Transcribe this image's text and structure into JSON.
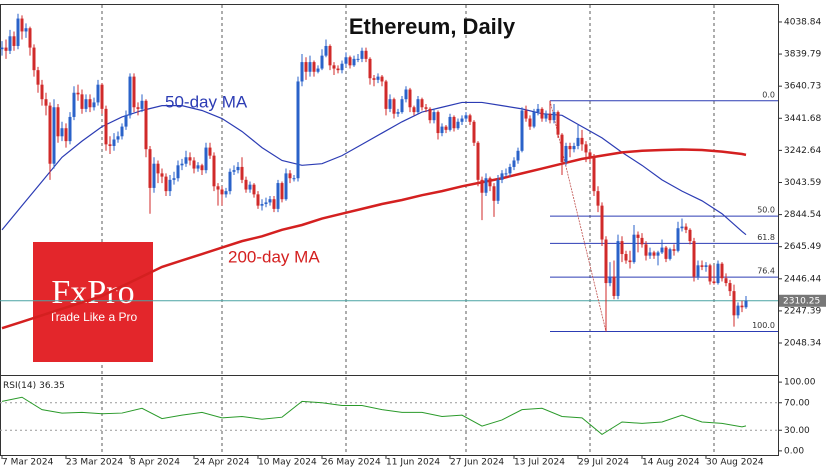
{
  "chart_data": {
    "type": "candlestick",
    "title": "Ethereum, Daily",
    "up_color": "#2a62c9",
    "down_color": "#d02a2a",
    "grid": true,
    "ylim": [
      1881,
      4144
    ],
    "yticks": [
      4038.84,
      3839.79,
      3640.73,
      3441.68,
      3242.64,
      3043.59,
      2844.54,
      2645.49,
      2446.44,
      2247.39,
      2048.34
    ],
    "xticks": [
      "7 Mar 2024",
      "23 Mar 2024",
      "8 Apr 2024",
      "24 Apr 2024",
      "10 May 2024",
      "26 May 2024",
      "11 Jun 2024",
      "27 Jun 2024",
      "13 Jul 2024",
      "29 Jul 2024",
      "14 Aug 2024",
      "30 Aug 2024"
    ],
    "candles": [
      [
        3870,
        3920,
        3830,
        3880
      ],
      [
        3880,
        3930,
        3810,
        3860
      ],
      [
        3860,
        3990,
        3840,
        3950
      ],
      [
        3950,
        3980,
        3860,
        3890
      ],
      [
        3890,
        4090,
        3870,
        4060
      ],
      [
        4060,
        4080,
        3930,
        3980
      ],
      [
        3980,
        4030,
        3940,
        4000
      ],
      [
        4000,
        4010,
        3830,
        3880
      ],
      [
        3880,
        3900,
        3700,
        3740
      ],
      [
        3740,
        3760,
        3600,
        3650
      ],
      [
        3650,
        3680,
        3520,
        3560
      ],
      [
        3560,
        3600,
        3460,
        3520
      ],
      [
        3520,
        3540,
        3060,
        3160
      ],
      [
        3160,
        3560,
        3130,
        3510
      ],
      [
        3510,
        3530,
        3290,
        3330
      ],
      [
        3330,
        3420,
        3300,
        3380
      ],
      [
        3380,
        3410,
        3260,
        3300
      ],
      [
        3300,
        3480,
        3280,
        3450
      ],
      [
        3450,
        3640,
        3430,
        3600
      ],
      [
        3600,
        3650,
        3550,
        3590
      ],
      [
        3590,
        3620,
        3470,
        3500
      ],
      [
        3500,
        3590,
        3480,
        3560
      ],
      [
        3560,
        3590,
        3480,
        3510
      ],
      [
        3510,
        3570,
        3490,
        3540
      ],
      [
        3540,
        3680,
        3520,
        3650
      ],
      [
        3650,
        3660,
        3470,
        3500
      ],
      [
        3500,
        3520,
        3240,
        3280
      ],
      [
        3280,
        3330,
        3220,
        3270
      ],
      [
        3270,
        3350,
        3240,
        3310
      ],
      [
        3310,
        3360,
        3290,
        3330
      ],
      [
        3330,
        3410,
        3310,
        3390
      ],
      [
        3390,
        3490,
        3370,
        3460
      ],
      [
        3460,
        3720,
        3440,
        3700
      ],
      [
        3700,
        3720,
        3480,
        3510
      ],
      [
        3510,
        3540,
        3460,
        3500
      ],
      [
        3500,
        3590,
        3480,
        3550
      ],
      [
        3550,
        3560,
        3200,
        3250
      ],
      [
        3250,
        3270,
        2850,
        3010
      ],
      [
        3010,
        3200,
        2980,
        3160
      ],
      [
        3160,
        3180,
        3040,
        3100
      ],
      [
        3100,
        3130,
        3040,
        3080
      ],
      [
        3080,
        3100,
        2960,
        2990
      ],
      [
        2990,
        3090,
        2960,
        3060
      ],
      [
        3060,
        3110,
        3030,
        3070
      ],
      [
        3070,
        3180,
        3050,
        3150
      ],
      [
        3150,
        3190,
        3120,
        3160
      ],
      [
        3160,
        3240,
        3140,
        3200
      ],
      [
        3200,
        3230,
        3150,
        3180
      ],
      [
        3180,
        3200,
        3100,
        3130
      ],
      [
        3130,
        3170,
        3110,
        3150
      ],
      [
        3150,
        3160,
        3090,
        3120
      ],
      [
        3120,
        3290,
        3100,
        3260
      ],
      [
        3260,
        3290,
        3190,
        3210
      ],
      [
        3210,
        3230,
        2990,
        3020
      ],
      [
        3020,
        3040,
        2900,
        3000
      ],
      [
        3000,
        3020,
        2900,
        2970
      ],
      [
        2970,
        3010,
        2950,
        2990
      ],
      [
        2990,
        3130,
        2970,
        3110
      ],
      [
        3110,
        3150,
        3090,
        3120
      ],
      [
        3120,
        3170,
        3100,
        3140
      ],
      [
        3140,
        3200,
        3040,
        3060
      ],
      [
        3060,
        3080,
        2980,
        3000
      ],
      [
        3000,
        3050,
        2980,
        3030
      ],
      [
        3030,
        3040,
        2950,
        2970
      ],
      [
        2970,
        2990,
        2880,
        2900
      ],
      [
        2900,
        2940,
        2870,
        2910
      ],
      [
        2910,
        2950,
        2890,
        2920
      ],
      [
        2920,
        2960,
        2900,
        2940
      ],
      [
        2940,
        2960,
        2860,
        2880
      ],
      [
        2880,
        3060,
        2860,
        3040
      ],
      [
        3040,
        3050,
        2920,
        2940
      ],
      [
        2940,
        3130,
        2930,
        3100
      ],
      [
        3100,
        3120,
        3040,
        3070
      ],
      [
        3070,
        3090,
        3050,
        3070
      ],
      [
        3070,
        3700,
        3050,
        3670
      ],
      [
        3670,
        3840,
        3640,
        3790
      ],
      [
        3790,
        3820,
        3680,
        3730
      ],
      [
        3730,
        3830,
        3700,
        3790
      ],
      [
        3790,
        3800,
        3700,
        3730
      ],
      [
        3730,
        3770,
        3720,
        3750
      ],
      [
        3750,
        3870,
        3740,
        3830
      ],
      [
        3830,
        3930,
        3820,
        3890
      ],
      [
        3890,
        3900,
        3740,
        3770
      ],
      [
        3770,
        3790,
        3710,
        3750
      ],
      [
        3750,
        3770,
        3720,
        3740
      ],
      [
        3740,
        3800,
        3720,
        3780
      ],
      [
        3780,
        3850,
        3760,
        3820
      ],
      [
        3820,
        3830,
        3750,
        3770
      ],
      [
        3770,
        3830,
        3760,
        3810
      ],
      [
        3810,
        3840,
        3790,
        3810
      ],
      [
        3810,
        3880,
        3790,
        3860
      ],
      [
        3860,
        3880,
        3790,
        3810
      ],
      [
        3810,
        3820,
        3650,
        3690
      ],
      [
        3690,
        3710,
        3640,
        3680
      ],
      [
        3680,
        3720,
        3660,
        3700
      ],
      [
        3700,
        3710,
        3640,
        3670
      ],
      [
        3670,
        3680,
        3460,
        3500
      ],
      [
        3500,
        3590,
        3480,
        3560
      ],
      [
        3560,
        3570,
        3440,
        3470
      ],
      [
        3470,
        3500,
        3450,
        3480
      ],
      [
        3480,
        3580,
        3470,
        3560
      ],
      [
        3560,
        3640,
        3540,
        3620
      ],
      [
        3620,
        3630,
        3480,
        3510
      ],
      [
        3510,
        3520,
        3460,
        3480
      ],
      [
        3480,
        3580,
        3470,
        3560
      ],
      [
        3560,
        3570,
        3490,
        3510
      ],
      [
        3510,
        3530,
        3480,
        3500
      ],
      [
        3500,
        3510,
        3410,
        3430
      ],
      [
        3430,
        3500,
        3410,
        3480
      ],
      [
        3480,
        3490,
        3310,
        3350
      ],
      [
        3350,
        3410,
        3330,
        3390
      ],
      [
        3390,
        3400,
        3350,
        3370
      ],
      [
        3370,
        3470,
        3360,
        3450
      ],
      [
        3450,
        3460,
        3360,
        3380
      ],
      [
        3380,
        3440,
        3370,
        3420
      ],
      [
        3420,
        3460,
        3400,
        3440
      ],
      [
        3440,
        3480,
        3420,
        3460
      ],
      [
        3460,
        3470,
        3400,
        3420
      ],
      [
        3420,
        3430,
        3270,
        3290
      ],
      [
        3290,
        3300,
        3020,
        3060
      ],
      [
        3060,
        3080,
        2810,
        2980
      ],
      [
        2980,
        3100,
        2960,
        3070
      ],
      [
        3070,
        3080,
        2990,
        3020
      ],
      [
        3020,
        3040,
        2830,
        2930
      ],
      [
        2930,
        3090,
        2910,
        3060
      ],
      [
        3060,
        3120,
        3040,
        3100
      ],
      [
        3100,
        3130,
        3080,
        3100
      ],
      [
        3100,
        3160,
        3080,
        3140
      ],
      [
        3140,
        3200,
        3120,
        3180
      ],
      [
        3180,
        3260,
        3160,
        3240
      ],
      [
        3240,
        3510,
        3230,
        3490
      ],
      [
        3490,
        3520,
        3420,
        3440
      ],
      [
        3440,
        3460,
        3370,
        3390
      ],
      [
        3390,
        3500,
        3380,
        3480
      ],
      [
        3480,
        3530,
        3460,
        3500
      ],
      [
        3500,
        3510,
        3420,
        3440
      ],
      [
        3440,
        3490,
        3420,
        3470
      ],
      [
        3470,
        3550,
        3410,
        3430
      ],
      [
        3430,
        3530,
        3410,
        3480
      ],
      [
        3480,
        3490,
        3320,
        3340
      ],
      [
        3340,
        3350,
        3090,
        3170
      ],
      [
        3170,
        3290,
        3150,
        3270
      ],
      [
        3270,
        3290,
        3200,
        3250
      ],
      [
        3250,
        3290,
        3230,
        3270
      ],
      [
        3270,
        3400,
        3250,
        3320
      ],
      [
        3320,
        3370,
        3240,
        3280
      ],
      [
        3280,
        3300,
        3170,
        3230
      ],
      [
        3230,
        3240,
        3170,
        3200
      ],
      [
        3200,
        3220,
        2960,
        2990
      ],
      [
        2990,
        3020,
        2860,
        2900
      ],
      [
        2900,
        2920,
        2650,
        2690
      ],
      [
        2690,
        2710,
        2120,
        2420
      ],
      [
        2420,
        2550,
        2400,
        2460
      ],
      [
        2460,
        2560,
        2320,
        2340
      ],
      [
        2340,
        2720,
        2320,
        2680
      ],
      [
        2680,
        2710,
        2550,
        2600
      ],
      [
        2600,
        2620,
        2540,
        2560
      ],
      [
        2560,
        2620,
        2510,
        2550
      ],
      [
        2550,
        2780,
        2540,
        2720
      ],
      [
        2720,
        2740,
        2610,
        2700
      ],
      [
        2700,
        2730,
        2640,
        2660
      ],
      [
        2660,
        2680,
        2560,
        2590
      ],
      [
        2590,
        2640,
        2570,
        2610
      ],
      [
        2610,
        2620,
        2570,
        2590
      ],
      [
        2590,
        2620,
        2530,
        2610
      ],
      [
        2610,
        2690,
        2600,
        2640
      ],
      [
        2640,
        2650,
        2550,
        2570
      ],
      [
        2570,
        2640,
        2560,
        2630
      ],
      [
        2630,
        2660,
        2590,
        2620
      ],
      [
        2620,
        2800,
        2610,
        2760
      ],
      [
        2760,
        2820,
        2740,
        2770
      ],
      [
        2770,
        2790,
        2730,
        2750
      ],
      [
        2750,
        2760,
        2660,
        2680
      ],
      [
        2680,
        2700,
        2430,
        2460
      ],
      [
        2460,
        2560,
        2440,
        2530
      ],
      [
        2530,
        2560,
        2500,
        2520
      ],
      [
        2520,
        2550,
        2490,
        2530
      ],
      [
        2530,
        2540,
        2410,
        2430
      ],
      [
        2430,
        2530,
        2410,
        2420
      ],
      [
        2420,
        2560,
        2410,
        2540
      ],
      [
        2540,
        2550,
        2430,
        2450
      ],
      [
        2450,
        2480,
        2400,
        2420
      ],
      [
        2420,
        2440,
        2340,
        2370
      ],
      [
        2370,
        2410,
        2150,
        2220
      ],
      [
        2220,
        2300,
        2200,
        2280
      ],
      [
        2280,
        2310,
        2240,
        2270
      ],
      [
        2270,
        2340,
        2260,
        2310.25
      ]
    ],
    "line_x": [
      "7 Mar 2024",
      "12 Mar 2024",
      "17 Mar 2024",
      "22 Mar 2024",
      "27 Mar 2024",
      "1 Apr 2024",
      "6 Apr 2024",
      "11 Apr 2024",
      "16 Apr 2024",
      "21 Apr 2024",
      "26 Apr 2024",
      "1 May 2024",
      "6 May 2024",
      "11 May 2024",
      "16 May 2024",
      "21 May 2024",
      "26 May 2024",
      "31 May 2024",
      "5 Jun 2024",
      "10 Jun 2024",
      "15 Jun 2024",
      "20 Jun 2024",
      "25 Jun 2024",
      "30 Jun 2024",
      "5 Jul 2024",
      "10 Jul 2024",
      "15 Jul 2024",
      "20 Jul 2024",
      "25 Jul 2024",
      "30 Jul 2024",
      "4 Aug 2024",
      "9 Aug 2024",
      "14 Aug 2024",
      "19 Aug 2024",
      "24 Aug 2024",
      "29 Aug 2024",
      "3 Sep 2024",
      "8 Sep 2024",
      "9 Sep 2024"
    ],
    "series": [
      {
        "name": "50-day MA",
        "color": "#2c3cb4",
        "values": [
          2750,
          2900,
          3050,
          3200,
          3300,
          3390,
          3450,
          3490,
          3520,
          3520,
          3490,
          3440,
          3360,
          3260,
          3180,
          3150,
          3160,
          3210,
          3280,
          3350,
          3420,
          3480,
          3510,
          3540,
          3540,
          3520,
          3500,
          3470,
          3460,
          3390,
          3320,
          3230,
          3150,
          3060,
          2990,
          2930,
          2850,
          2740,
          2720
        ]
      },
      {
        "name": "200-day MA",
        "color": "#d42020",
        "values": [
          2140,
          2180,
          2220,
          2260,
          2300,
          2340,
          2400,
          2460,
          2520,
          2560,
          2600,
          2640,
          2680,
          2710,
          2750,
          2780,
          2820,
          2850,
          2880,
          2910,
          2935,
          2965,
          2990,
          3020,
          3045,
          3070,
          3100,
          3130,
          3160,
          3190,
          3210,
          3230,
          3240,
          3245,
          3248,
          3245,
          3235,
          3220,
          3215
        ]
      }
    ],
    "fibonacci": {
      "color": "#2c3cb4",
      "levels": [
        {
          "label": "0.0",
          "value": 3550
        },
        {
          "label": "50.0",
          "value": 2835
        },
        {
          "label": "61.8",
          "value": 2666
        },
        {
          "label": "76.4",
          "value": 2457
        },
        {
          "label": "100.0",
          "value": 2120
        }
      ]
    },
    "last_price_color": "#4aa3a3",
    "rsi": {
      "label": "RSI(14)",
      "color": "#2a9a2a",
      "ylim": [
        -6,
        106
      ],
      "yticks": [
        {
          "value": 100,
          "label": "100.00"
        },
        {
          "value": 70,
          "label": "70.00"
        },
        {
          "value": 30,
          "label": "30.00"
        },
        {
          "value": 0,
          "label": "0.00"
        }
      ],
      "values": [
        72,
        78,
        60,
        55,
        56,
        54,
        55,
        62,
        47,
        52,
        56,
        48,
        50,
        46,
        49,
        72,
        70,
        66,
        66,
        60,
        56,
        56,
        50,
        52,
        36,
        45,
        60,
        62,
        50,
        48,
        24,
        42,
        40,
        42,
        52,
        42,
        40,
        35,
        36.35
      ]
    },
    "watermark": {
      "brand": "FxPro",
      "tagline": "Trade Like a Pro",
      "color": "#e3262b"
    }
  }
}
